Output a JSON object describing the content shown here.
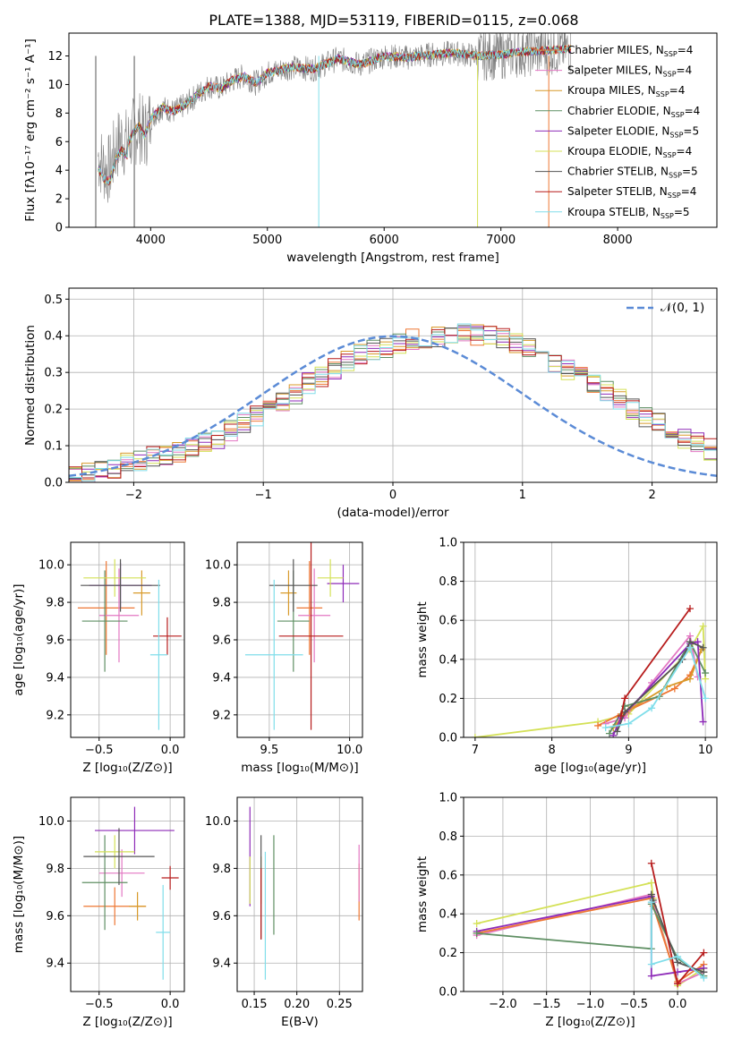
{
  "figure_title": "PLATE=1388, MJD=53119, FIBERID=0115, z=0.068",
  "series_legend": [
    {
      "name": "Chabrier MILES, N",
      "sub": "SSP",
      "tail": "=4",
      "color": "#ee7733"
    },
    {
      "name": "Salpeter MILES, N",
      "sub": "SSP",
      "tail": "=4",
      "color": "#e377c2"
    },
    {
      "name": "Kroupa MILES, N",
      "sub": "SSP",
      "tail": "=4",
      "color": "#d89a2a"
    },
    {
      "name": "Chabrier ELODIE, N",
      "sub": "SSP",
      "tail": "=4",
      "color": "#5f8f63"
    },
    {
      "name": "Salpeter ELODIE, N",
      "sub": "SSP",
      "tail": "=5",
      "color": "#8e2bb8"
    },
    {
      "name": "Kroupa ELODIE, N",
      "sub": "SSP",
      "tail": "=4",
      "color": "#d4e157"
    },
    {
      "name": "Chabrier STELIB, N",
      "sub": "SSP",
      "tail": "=5",
      "color": "#555555"
    },
    {
      "name": "Salpeter STELIB, N",
      "sub": "SSP",
      "tail": "=4",
      "color": "#b71c1c"
    },
    {
      "name": "Kroupa STELIB, N",
      "sub": "SSP",
      "tail": "=5",
      "color": "#80deea"
    }
  ],
  "chart_data": [
    {
      "id": "spectrum",
      "type": "line",
      "xlabel": "wavelength [Angstrom, rest frame]",
      "ylabel": "Flux [fλ10⁻¹⁷ erg cm⁻² s⁻¹ A⁻¹]",
      "xlim": [
        3300,
        8850
      ],
      "ylim": [
        0,
        13.6
      ],
      "xticks": [
        "4000",
        "5000",
        "6000",
        "7000",
        "8000"
      ],
      "xtick_values": [
        4000,
        5000,
        6000,
        7000,
        8000
      ],
      "yticks": [
        "0",
        "2",
        "4",
        "6",
        "8",
        "10",
        "12"
      ],
      "ytick_values": [
        0,
        2,
        4,
        6,
        8,
        10,
        12
      ],
      "data_color": "#808080",
      "model_color": "#80deea",
      "x": [
        3550,
        3600,
        3650,
        3700,
        3750,
        3800,
        3850,
        3900,
        3950,
        4000,
        4100,
        4200,
        4300,
        4400,
        4500,
        4600,
        4700,
        4800,
        4900,
        5000,
        5200,
        5400,
        5600,
        5800,
        6000,
        6200,
        6400,
        6600,
        6800,
        7000,
        7200,
        7400,
        7600
      ],
      "model": [
        5.0,
        4.2,
        4.0,
        5.5,
        6.2,
        5.8,
        6.6,
        7.1,
        6.4,
        7.6,
        8.4,
        8.1,
        8.6,
        9.3,
        9.9,
        9.7,
        10.3,
        10.6,
        10.1,
        10.8,
        11.2,
        11.1,
        11.8,
        11.4,
        12.0,
        11.9,
        12.1,
        12.2,
        12.0,
        12.1,
        12.3,
        12.4,
        12.5
      ],
      "grid": false
    },
    {
      "id": "residual_hist",
      "type": "bar",
      "xlabel": "(data-model)/error",
      "ylabel": "Normed distribution",
      "xlim": [
        -2.5,
        2.5
      ],
      "ylim": [
        0,
        0.53
      ],
      "xticks": [
        "−2",
        "−1",
        "0",
        "1",
        "2"
      ],
      "xtick_values": [
        -2,
        -1,
        0,
        1,
        2
      ],
      "yticks": [
        "0.0",
        "0.1",
        "0.2",
        "0.3",
        "0.4",
        "0.5"
      ],
      "ytick_values": [
        0,
        0.1,
        0.2,
        0.3,
        0.4,
        0.5
      ],
      "legend": "𝒩(0, 1)",
      "gauss_color": "#5b8bd6",
      "bin_width": 0.1,
      "bins_start": -2.5,
      "base": [
        0.02,
        0.03,
        0.03,
        0.04,
        0.05,
        0.06,
        0.07,
        0.07,
        0.08,
        0.1,
        0.11,
        0.12,
        0.14,
        0.16,
        0.18,
        0.2,
        0.22,
        0.24,
        0.27,
        0.29,
        0.31,
        0.33,
        0.35,
        0.36,
        0.37,
        0.38,
        0.39,
        0.39,
        0.4,
        0.4,
        0.41,
        0.4,
        0.4,
        0.39,
        0.38,
        0.37,
        0.35,
        0.33,
        0.31,
        0.29,
        0.27,
        0.25,
        0.23,
        0.2,
        0.18,
        0.16,
        0.14,
        0.12,
        0.11,
        0.09,
        0.08,
        0.07,
        0.06,
        0.05,
        0.04,
        0.04,
        0.03,
        0.03,
        0.02,
        0.02
      ],
      "grid": true
    },
    {
      "id": "age_vs_Z",
      "type": "scatter",
      "xlabel": "Z [log₁₀(Z/Z⊙)]",
      "ylabel": "age  [log₁₀(age/yr)]",
      "xlim": [
        -0.7,
        0.1
      ],
      "ylim": [
        9.08,
        10.12
      ],
      "xticks": [
        "−0.5",
        "0.0"
      ],
      "xtick_values": [
        -0.5,
        0.0
      ],
      "yticks": [
        "9.2",
        "9.4",
        "9.6",
        "9.8",
        "10.0"
      ],
      "ytick_values": [
        9.2,
        9.4,
        9.6,
        9.8,
        10.0
      ],
      "points": [
        {
          "x": -0.45,
          "xerr": 0.2,
          "y": 9.77,
          "yerr": 0.25,
          "color": "#ee7733"
        },
        {
          "x": -0.36,
          "xerr": 0.14,
          "y": 9.73,
          "yerr": 0.25,
          "color": "#e377c2"
        },
        {
          "x": -0.2,
          "xerr": 0.06,
          "y": 9.85,
          "yerr": 0.12,
          "color": "#d89a2a"
        },
        {
          "x": -0.46,
          "xerr": 0.16,
          "y": 9.7,
          "yerr": 0.27,
          "color": "#5f8f63"
        },
        {
          "x": -0.35,
          "xerr": 0.22,
          "y": 9.89,
          "yerr": 0.12,
          "color": "#8e2bb8"
        },
        {
          "x": -0.39,
          "xerr": 0.22,
          "y": 9.93,
          "yerr": 0.1,
          "color": "#d4e157"
        },
        {
          "x": -0.35,
          "xerr": 0.28,
          "y": 9.89,
          "yerr": 0.14,
          "color": "#555555"
        },
        {
          "x": -0.02,
          "xerr": 0.1,
          "y": 9.62,
          "yerr": 0.1,
          "color": "#b71c1c"
        },
        {
          "x": -0.08,
          "xerr": 0.06,
          "y": 9.52,
          "yerr": 0.4,
          "color": "#80deea"
        }
      ],
      "grid": true
    },
    {
      "id": "age_vs_mass",
      "type": "scatter",
      "xlabel": "mass [log₁₀(M/M⊙)]",
      "ylabel": "",
      "xlim": [
        9.3,
        10.08
      ],
      "ylim": [
        9.08,
        10.12
      ],
      "xticks": [
        "9.5",
        "10.0"
      ],
      "xtick_values": [
        9.5,
        10.0
      ],
      "yticks": [
        "9.2",
        "9.4",
        "9.6",
        "9.8",
        "10.0"
      ],
      "ytick_values": [
        9.2,
        9.4,
        9.6,
        9.8,
        10.0
      ],
      "points": [
        {
          "x": 9.75,
          "xerr": 0.08,
          "y": 9.77,
          "yerr": 0.25,
          "color": "#ee7733"
        },
        {
          "x": 9.78,
          "xerr": 0.1,
          "y": 9.73,
          "yerr": 0.25,
          "color": "#e377c2"
        },
        {
          "x": 9.62,
          "xerr": 0.05,
          "y": 9.85,
          "yerr": 0.12,
          "color": "#d89a2a"
        },
        {
          "x": 9.65,
          "xerr": 0.1,
          "y": 9.7,
          "yerr": 0.27,
          "color": "#5f8f63"
        },
        {
          "x": 9.96,
          "xerr": 0.1,
          "y": 9.9,
          "yerr": 0.1,
          "color": "#8e2bb8"
        },
        {
          "x": 9.88,
          "xerr": 0.08,
          "y": 9.93,
          "yerr": 0.1,
          "color": "#d4e157"
        },
        {
          "x": 9.65,
          "xerr": 0.15,
          "y": 9.89,
          "yerr": 0.14,
          "color": "#555555"
        },
        {
          "x": 9.76,
          "xerr": 0.2,
          "y": 9.62,
          "yerr": 0.5,
          "color": "#b71c1c"
        },
        {
          "x": 9.53,
          "xerr": 0.18,
          "y": 9.52,
          "yerr": 0.4,
          "color": "#80deea"
        }
      ],
      "grid": true
    },
    {
      "id": "weight_vs_age",
      "type": "line",
      "xlabel": "age  [log₁₀(age/yr)]",
      "ylabel": "mass weight",
      "xlim": [
        6.85,
        10.15
      ],
      "ylim": [
        0,
        1.0
      ],
      "xticks": [
        "7",
        "8",
        "9",
        "10"
      ],
      "xtick_values": [
        7,
        8,
        9,
        10
      ],
      "yticks": [
        "0.0",
        "0.2",
        "0.4",
        "0.6",
        "0.8",
        "1.0"
      ],
      "ytick_values": [
        0,
        0.2,
        0.4,
        0.6,
        0.8,
        1.0
      ],
      "series": [
        {
          "color": "#d4e157",
          "x": [
            7.0,
            8.6,
            9.0,
            9.8,
            9.97,
            10.0
          ],
          "y": [
            0.0,
            0.08,
            0.12,
            0.45,
            0.57,
            0.3
          ]
        },
        {
          "color": "#ee7733",
          "x": [
            8.6,
            8.9,
            9.6,
            9.8,
            9.95
          ],
          "y": [
            0.06,
            0.12,
            0.25,
            0.32,
            0.45
          ]
        },
        {
          "color": "#e377c2",
          "x": [
            8.7,
            8.95,
            9.3,
            9.8,
            9.9
          ],
          "y": [
            0.07,
            0.1,
            0.28,
            0.52,
            0.31
          ]
        },
        {
          "color": "#d89a2a",
          "x": [
            8.8,
            9.0,
            9.5,
            9.8,
            9.95
          ],
          "y": [
            0.05,
            0.14,
            0.26,
            0.3,
            0.45
          ]
        },
        {
          "color": "#5f8f63",
          "x": [
            8.75,
            8.95,
            9.4,
            9.8,
            10.0
          ],
          "y": [
            0.02,
            0.16,
            0.21,
            0.49,
            0.33
          ]
        },
        {
          "color": "#8e2bb8",
          "x": [
            8.8,
            8.9,
            9.8,
            9.9,
            9.97
          ],
          "y": [
            0.01,
            0.1,
            0.48,
            0.49,
            0.08
          ]
        },
        {
          "color": "#555555",
          "x": [
            8.85,
            8.95,
            9.7,
            9.8,
            9.97
          ],
          "y": [
            0.03,
            0.13,
            0.4,
            0.49,
            0.46
          ]
        },
        {
          "color": "#b71c1c",
          "x": [
            8.9,
            8.95,
            9.8
          ],
          "y": [
            0.11,
            0.2,
            0.66
          ]
        },
        {
          "color": "#80deea",
          "x": [
            8.7,
            9.0,
            9.3,
            9.8,
            10.0
          ],
          "y": [
            0.05,
            0.07,
            0.15,
            0.46,
            0.2
          ]
        }
      ],
      "grid": true
    },
    {
      "id": "mass_vs_Z",
      "type": "scatter",
      "xlabel": "Z [log₁₀(Z/Z⊙)]",
      "ylabel": "mass [log₁₀(M/M⊙)]",
      "xlim": [
        -0.7,
        0.1
      ],
      "ylim": [
        9.28,
        10.1
      ],
      "xticks": [
        "−0.5",
        "0.0"
      ],
      "xtick_values": [
        -0.5,
        0.0
      ],
      "yticks": [
        "9.4",
        "9.6",
        "9.8",
        "10.0"
      ],
      "ytick_values": [
        9.4,
        9.6,
        9.8,
        10.0
      ],
      "points": [
        {
          "x": -0.39,
          "xerr": 0.22,
          "y": 9.64,
          "yerr": 0.08,
          "color": "#ee7733"
        },
        {
          "x": -0.34,
          "xerr": 0.16,
          "y": 9.78,
          "yerr": 0.1,
          "color": "#e377c2"
        },
        {
          "x": -0.23,
          "xerr": 0.06,
          "y": 9.64,
          "yerr": 0.06,
          "color": "#d89a2a"
        },
        {
          "x": -0.46,
          "xerr": 0.16,
          "y": 9.74,
          "yerr": 0.2,
          "color": "#5f8f63"
        },
        {
          "x": -0.25,
          "xerr": 0.28,
          "y": 9.96,
          "yerr": 0.1,
          "color": "#8e2bb8"
        },
        {
          "x": -0.39,
          "xerr": 0.14,
          "y": 9.87,
          "yerr": 0.07,
          "color": "#d4e157"
        },
        {
          "x": -0.36,
          "xerr": 0.25,
          "y": 9.85,
          "yerr": 0.12,
          "color": "#555555"
        },
        {
          "x": 0.0,
          "xerr": 0.06,
          "y": 9.76,
          "yerr": 0.05,
          "color": "#b71c1c"
        },
        {
          "x": -0.05,
          "xerr": 0.05,
          "y": 9.53,
          "yerr": 0.2,
          "color": "#80deea"
        }
      ],
      "grid": true
    },
    {
      "id": "mass_vs_ebv",
      "type": "scatter",
      "xlabel": "E(B-V)",
      "ylabel": "",
      "xlim": [
        0.13,
        0.277
      ],
      "ylim": [
        9.28,
        10.1
      ],
      "xticks": [
        "0.15",
        "0.20",
        "0.25"
      ],
      "xtick_values": [
        0.15,
        0.2,
        0.25
      ],
      "yticks": [
        "9.4",
        "9.6",
        "9.8",
        "10.0"
      ],
      "ytick_values": [
        9.4,
        9.6,
        9.8,
        10.0
      ],
      "points": [
        {
          "x": 0.273,
          "xerr": 0,
          "y": 9.7,
          "yerr": 0.12,
          "color": "#ee7733"
        },
        {
          "x": 0.273,
          "xerr": 0,
          "y": 9.78,
          "yerr": 0.12,
          "color": "#e377c2"
        },
        {
          "x": 0.158,
          "xerr": 0,
          "y": 9.75,
          "yerr": 0.1,
          "color": "#d89a2a"
        },
        {
          "x": 0.173,
          "xerr": 0,
          "y": 9.73,
          "yerr": 0.21,
          "color": "#5f8f63"
        },
        {
          "x": 0.145,
          "xerr": 0,
          "y": 9.85,
          "yerr": 0.21,
          "color": "#8e2bb8"
        },
        {
          "x": 0.145,
          "xerr": 0,
          "y": 9.75,
          "yerr": 0.1,
          "color": "#d4e157"
        },
        {
          "x": 0.158,
          "xerr": 0,
          "y": 9.72,
          "yerr": 0.22,
          "color": "#555555"
        },
        {
          "x": 0.158,
          "xerr": 0,
          "y": 9.65,
          "yerr": 0.15,
          "color": "#b71c1c"
        },
        {
          "x": 0.163,
          "xerr": 0,
          "y": 9.6,
          "yerr": 0.27,
          "color": "#80deea"
        }
      ],
      "grid": true
    },
    {
      "id": "weight_vs_Z",
      "type": "line",
      "xlabel": "Z [log₁₀(Z/Z⊙)]",
      "ylabel": "mass weight",
      "xlim": [
        -2.45,
        0.45
      ],
      "ylim": [
        0,
        1.0
      ],
      "xticks": [
        "−2.0",
        "−1.5",
        "−1.0",
        "−0.5",
        "0.0"
      ],
      "xtick_values": [
        -2.0,
        -1.5,
        -1.0,
        -0.5,
        0.0
      ],
      "yticks": [
        "0.0",
        "0.2",
        "0.4",
        "0.6",
        "0.8",
        "1.0"
      ],
      "ytick_values": [
        0,
        0.2,
        0.4,
        0.6,
        0.8,
        1.0
      ],
      "series": [
        {
          "color": "#d4e157",
          "x": [
            -2.3,
            -0.3,
            -0.28,
            0.0,
            0.3
          ],
          "y": [
            0.35,
            0.56,
            0.48,
            0.03,
            0.12
          ]
        },
        {
          "color": "#e377c2",
          "x": [
            -2.3,
            -0.3,
            -0.28,
            0.0,
            0.3
          ],
          "y": [
            0.29,
            0.5,
            0.46,
            0.04,
            0.1
          ]
        },
        {
          "color": "#ee7733",
          "x": [
            -2.3,
            -0.3,
            -0.28,
            0.0,
            0.3
          ],
          "y": [
            0.3,
            0.48,
            0.44,
            0.05,
            0.14
          ]
        },
        {
          "color": "#8e2bb8",
          "x": [
            -2.3,
            -0.3,
            -0.3,
            0.0,
            0.3
          ],
          "y": [
            0.31,
            0.49,
            0.08,
            0.1,
            0.12
          ]
        },
        {
          "color": "#5f8f63",
          "x": [
            -2.3,
            -0.3,
            -0.3,
            0.0,
            0.3
          ],
          "y": [
            0.3,
            0.22,
            0.45,
            0.17,
            0.08
          ]
        },
        {
          "color": "#555555",
          "x": [
            -0.3,
            -0.28,
            0.0,
            0.3
          ],
          "y": [
            0.5,
            0.47,
            0.15,
            0.1
          ]
        },
        {
          "color": "#b71c1c",
          "x": [
            -0.3,
            0.0,
            0.3
          ],
          "y": [
            0.66,
            0.04,
            0.2
          ]
        },
        {
          "color": "#80deea",
          "x": [
            -0.3,
            -0.3,
            0.0,
            0.3
          ],
          "y": [
            0.46,
            0.14,
            0.18,
            0.07
          ]
        }
      ],
      "grid": true
    }
  ]
}
